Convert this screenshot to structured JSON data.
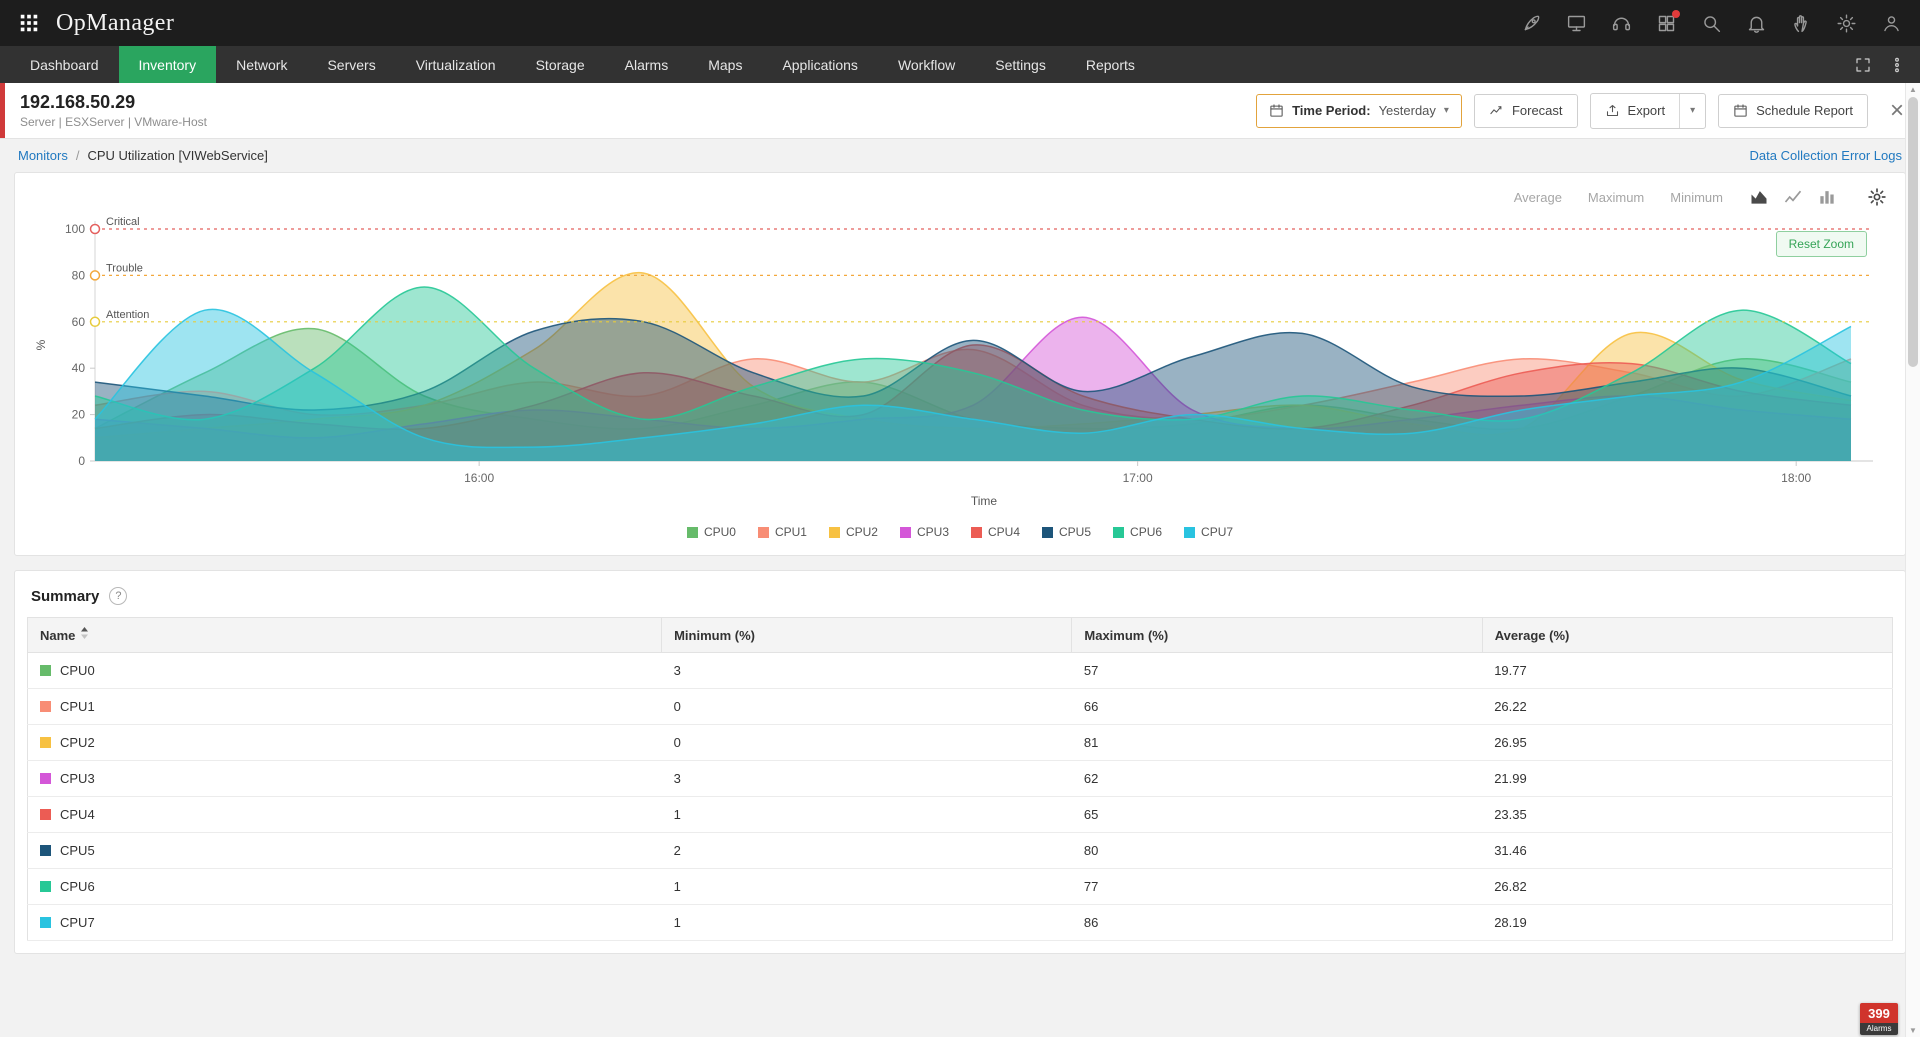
{
  "app": {
    "title": "OpManager"
  },
  "topbar": {
    "icons": [
      "rocket-icon",
      "remote-display-icon",
      "support-headset-icon",
      "addons-icon",
      "search-icon",
      "bell-icon",
      "feedback-hand-icon",
      "gear-icon",
      "user-icon"
    ]
  },
  "nav": {
    "items": [
      {
        "label": "Dashboard",
        "active": false
      },
      {
        "label": "Inventory",
        "active": true
      },
      {
        "label": "Network",
        "active": false
      },
      {
        "label": "Servers",
        "active": false
      },
      {
        "label": "Virtualization",
        "active": false
      },
      {
        "label": "Storage",
        "active": false
      },
      {
        "label": "Alarms",
        "active": false
      },
      {
        "label": "Maps",
        "active": false
      },
      {
        "label": "Applications",
        "active": false
      },
      {
        "label": "Workflow",
        "active": false
      },
      {
        "label": "Settings",
        "active": false
      },
      {
        "label": "Reports",
        "active": false
      }
    ],
    "active_color": "#2aa55f"
  },
  "device": {
    "ip": "192.168.50.29",
    "meta": "Server | ESXServer  | VMware-Host",
    "accent_color": "#d03a3a"
  },
  "toolbar": {
    "time_period_label": "Time Period:",
    "time_period_value": "Yesterday",
    "forecast_label": "Forecast",
    "export_label": "Export",
    "schedule_label": "Schedule Report"
  },
  "breadcrumb": {
    "parent": "Monitors",
    "separator": "/",
    "current": "CPU Utilization [VIWebService]",
    "right_link": "Data Collection Error Logs"
  },
  "chart_controls": {
    "stats": [
      "Average",
      "Maximum",
      "Minimum"
    ],
    "reset_zoom": "Reset Zoom"
  },
  "chart_data": {
    "type": "area",
    "title": "CPU Utilization [VIWebService]",
    "xlabel": "Time",
    "ylabel": "%",
    "ylim": [
      0,
      100
    ],
    "y_ticks": [
      0,
      20,
      40,
      60,
      80,
      100
    ],
    "x_ticks": [
      "16:00",
      "17:00",
      "18:00"
    ],
    "x_tick_minutes": [
      960,
      1020,
      1080
    ],
    "x_range_minutes": [
      925,
      1087
    ],
    "grid": false,
    "legend_position": "bottom",
    "thresholds": [
      {
        "label": "Critical",
        "value": 100,
        "color": "#e4605e"
      },
      {
        "label": "Trouble",
        "value": 80,
        "color": "#f3a83c"
      },
      {
        "label": "Attention",
        "value": 60,
        "color": "#e7cb3c"
      }
    ],
    "x_minutes": [
      925,
      935,
      945,
      955,
      965,
      975,
      985,
      995,
      1005,
      1015,
      1025,
      1035,
      1045,
      1055,
      1065,
      1075,
      1085
    ],
    "series": [
      {
        "name": "CPU0",
        "color": "#66bb6a",
        "values": [
          14,
          38,
          57,
          28,
          18,
          14,
          24,
          34,
          18,
          14,
          16,
          24,
          18,
          14,
          28,
          44,
          34
        ]
      },
      {
        "name": "CPU1",
        "color": "#f88d75",
        "values": [
          24,
          30,
          20,
          24,
          34,
          28,
          44,
          34,
          48,
          24,
          18,
          24,
          34,
          44,
          38,
          28,
          44
        ]
      },
      {
        "name": "CPU2",
        "color": "#f7c142",
        "values": [
          10,
          14,
          18,
          24,
          48,
          81,
          32,
          18,
          14,
          16,
          20,
          24,
          16,
          14,
          55,
          35,
          26
        ]
      },
      {
        "name": "CPU3",
        "color": "#d457d8",
        "values": [
          18,
          14,
          10,
          16,
          22,
          18,
          14,
          18,
          24,
          62,
          22,
          14,
          18,
          24,
          28,
          22,
          18
        ]
      },
      {
        "name": "CPU4",
        "color": "#ec5c54",
        "values": [
          14,
          20,
          16,
          14,
          24,
          38,
          28,
          20,
          50,
          28,
          18,
          14,
          24,
          38,
          42,
          30,
          24
        ]
      },
      {
        "name": "CPU5",
        "color": "#1d557a",
        "values": [
          34,
          28,
          22,
          30,
          56,
          60,
          38,
          28,
          52,
          30,
          45,
          55,
          32,
          28,
          34,
          40,
          28
        ]
      },
      {
        "name": "CPU6",
        "color": "#27c896",
        "values": [
          28,
          18,
          40,
          75,
          40,
          18,
          32,
          44,
          38,
          22,
          18,
          28,
          22,
          18,
          38,
          65,
          42
        ]
      },
      {
        "name": "CPU7",
        "color": "#29c3e0",
        "values": [
          18,
          65,
          38,
          10,
          6,
          10,
          16,
          24,
          18,
          12,
          20,
          14,
          12,
          22,
          28,
          34,
          58
        ]
      }
    ]
  },
  "summary": {
    "title": "Summary",
    "help": "?",
    "columns": [
      "Name",
      "Minimum (%)",
      "Maximum (%)",
      "Average (%)"
    ],
    "rows": [
      {
        "name": "CPU0",
        "color": "#66bb6a",
        "min": "3",
        "max": "57",
        "avg": "19.77"
      },
      {
        "name": "CPU1",
        "color": "#f88d75",
        "min": "0",
        "max": "66",
        "avg": "26.22"
      },
      {
        "name": "CPU2",
        "color": "#f7c142",
        "min": "0",
        "max": "81",
        "avg": "26.95"
      },
      {
        "name": "CPU3",
        "color": "#d457d8",
        "min": "3",
        "max": "62",
        "avg": "21.99"
      },
      {
        "name": "CPU4",
        "color": "#ec5c54",
        "min": "1",
        "max": "65",
        "avg": "23.35"
      },
      {
        "name": "CPU5",
        "color": "#1d557a",
        "min": "2",
        "max": "80",
        "avg": "31.46"
      },
      {
        "name": "CPU6",
        "color": "#27c896",
        "min": "1",
        "max": "77",
        "avg": "26.82"
      },
      {
        "name": "CPU7",
        "color": "#29c3e0",
        "min": "1",
        "max": "86",
        "avg": "28.19"
      }
    ]
  },
  "alarms_badge": {
    "count": "399",
    "label": "Alarms"
  }
}
